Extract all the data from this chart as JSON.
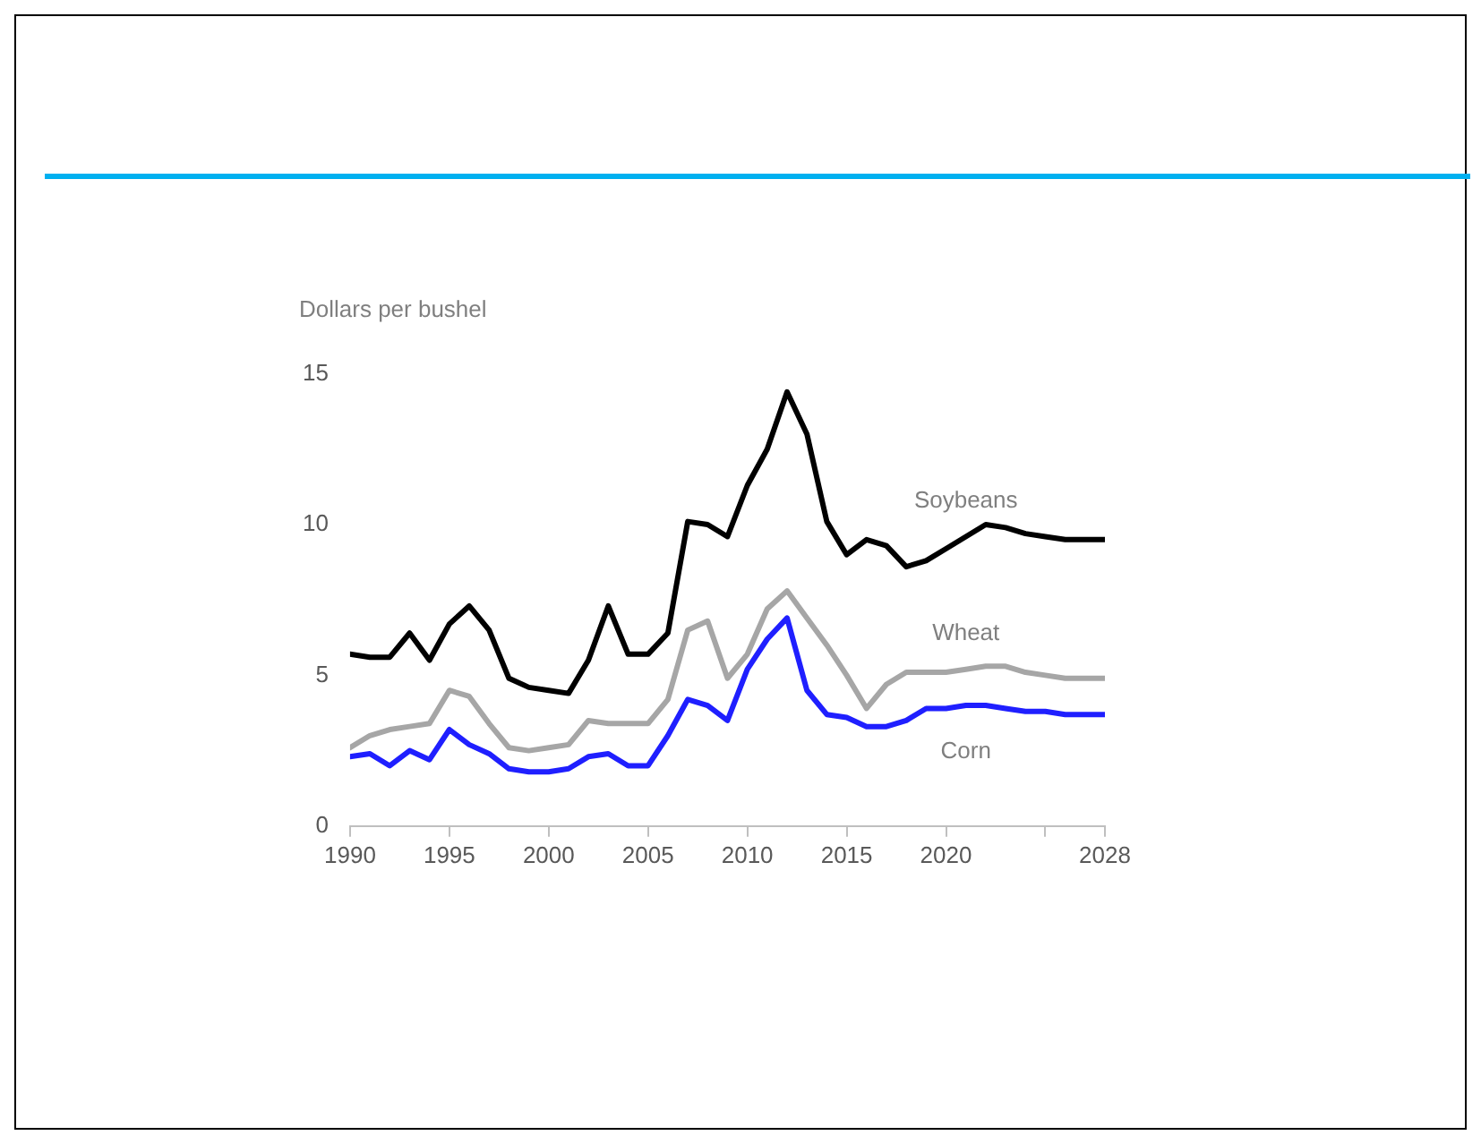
{
  "chart_data": {
    "type": "line",
    "ylabel": "Dollars per bushel",
    "x": [
      1990,
      1991,
      1992,
      1993,
      1994,
      1995,
      1996,
      1997,
      1998,
      1999,
      2000,
      2001,
      2002,
      2003,
      2004,
      2005,
      2006,
      2007,
      2008,
      2009,
      2010,
      2011,
      2012,
      2013,
      2014,
      2015,
      2016,
      2017,
      2018,
      2019,
      2020,
      2021,
      2022,
      2023,
      2024,
      2025,
      2026,
      2027,
      2028
    ],
    "series": [
      {
        "name": "Soybeans",
        "color": "#000000",
        "values": [
          5.7,
          5.6,
          5.6,
          6.4,
          5.5,
          6.7,
          7.3,
          6.5,
          4.9,
          4.6,
          4.5,
          4.4,
          5.5,
          7.3,
          5.7,
          5.7,
          6.4,
          10.1,
          10.0,
          9.6,
          11.3,
          12.5,
          14.4,
          13.0,
          10.1,
          9.0,
          9.5,
          9.3,
          8.6,
          8.8,
          9.2,
          9.6,
          10.0,
          9.9,
          9.7,
          9.6,
          9.5,
          9.5,
          9.5
        ]
      },
      {
        "name": "Wheat",
        "color": "#a6a6a6",
        "values": [
          2.6,
          3.0,
          3.2,
          3.3,
          3.4,
          4.5,
          4.3,
          3.4,
          2.6,
          2.5,
          2.6,
          2.7,
          3.5,
          3.4,
          3.4,
          3.4,
          4.2,
          6.5,
          6.8,
          4.9,
          5.7,
          7.2,
          7.8,
          6.9,
          6.0,
          5.0,
          3.9,
          4.7,
          5.1,
          5.1,
          5.1,
          5.2,
          5.3,
          5.3,
          5.1,
          5.0,
          4.9,
          4.9,
          4.9
        ]
      },
      {
        "name": "Corn",
        "color": "#1f1fff",
        "values": [
          2.3,
          2.4,
          2.0,
          2.5,
          2.2,
          3.2,
          2.7,
          2.4,
          1.9,
          1.8,
          1.8,
          1.9,
          2.3,
          2.4,
          2.0,
          2.0,
          3.0,
          4.2,
          4.0,
          3.5,
          5.2,
          6.2,
          6.9,
          4.5,
          3.7,
          3.6,
          3.3,
          3.3,
          3.5,
          3.9,
          3.9,
          4.0,
          4.0,
          3.9,
          3.8,
          3.8,
          3.7,
          3.7,
          3.7
        ]
      }
    ],
    "xlim": [
      1990,
      2028
    ],
    "xticks": [
      1990,
      1995,
      2000,
      2005,
      2010,
      2015,
      2020,
      {
        "value": 2025,
        "label": null
      },
      2028
    ],
    "ylim": [
      0,
      15
    ],
    "yticks": [
      0,
      5,
      10,
      15
    ],
    "grid": false,
    "legend": false,
    "marker": "none",
    "line_style": "solid"
  }
}
